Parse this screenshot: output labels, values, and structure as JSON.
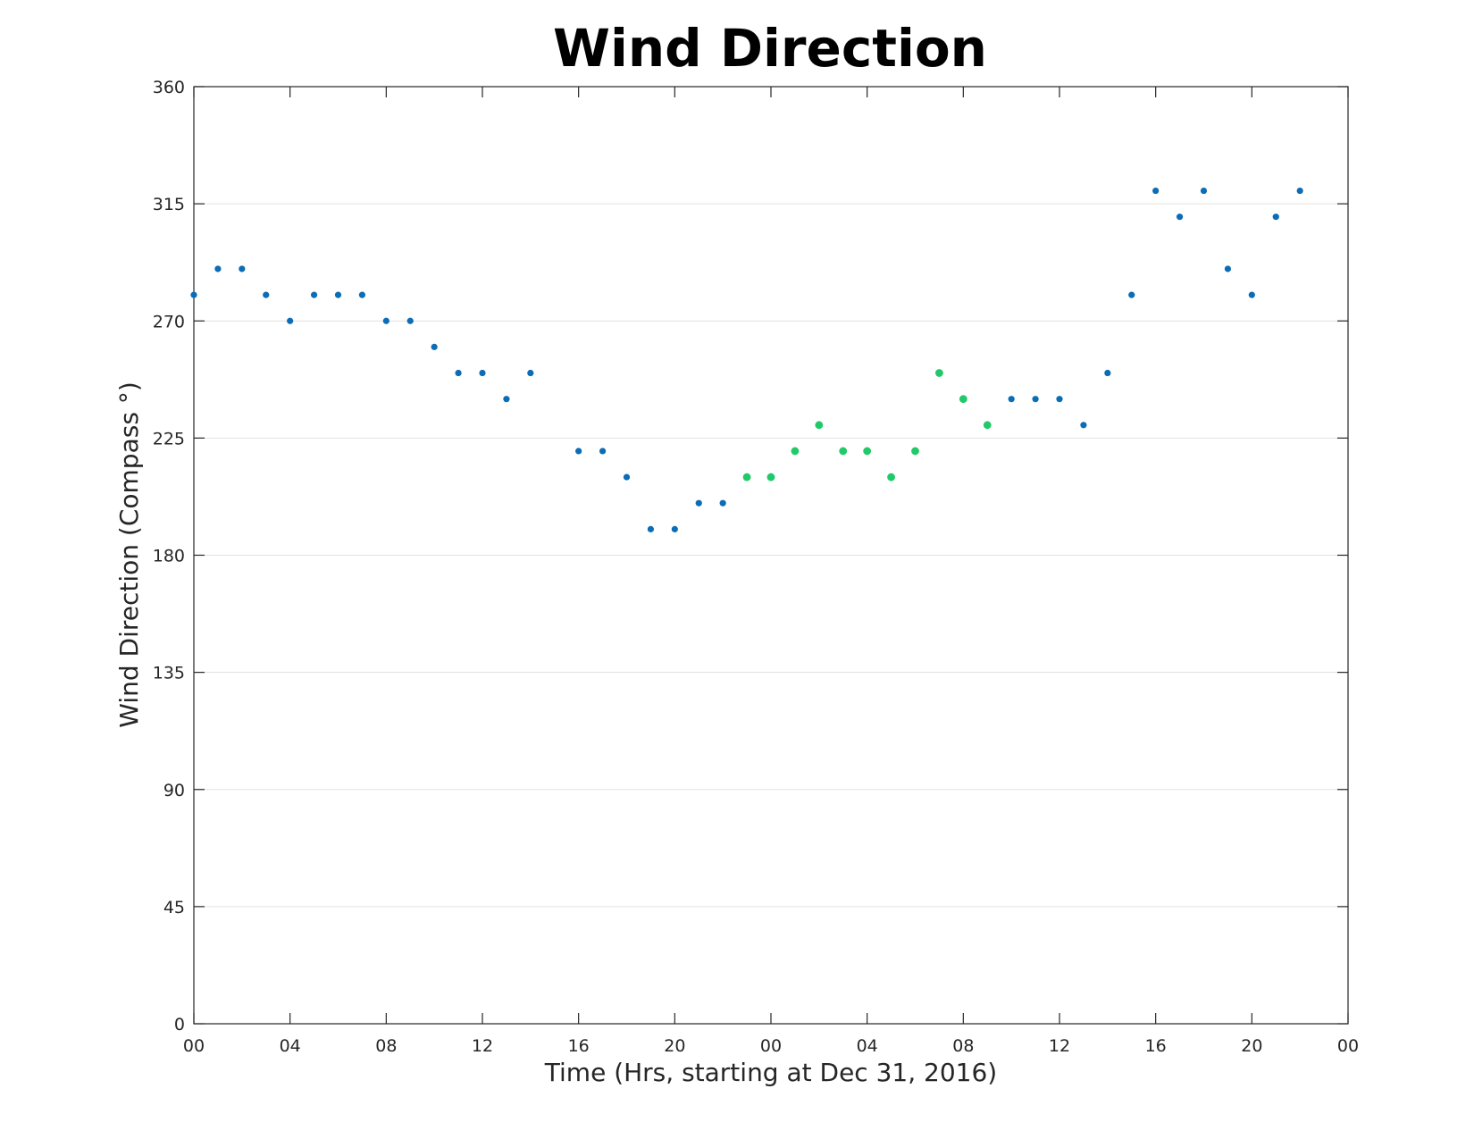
{
  "chart_data": {
    "type": "scatter",
    "title": "Wind Direction",
    "xlabel": "Time (Hrs, starting at Dec 31, 2016)",
    "ylabel": "Wind Direction (Compass °)",
    "ylim": [
      0,
      360
    ],
    "xlim": [
      "2016-12-31 00:00",
      "2017-01-02 00:00"
    ],
    "yticks": [
      0,
      45,
      90,
      135,
      180,
      225,
      270,
      315,
      360
    ],
    "xtick_labels": [
      "00",
      "04",
      "08",
      "12",
      "16",
      "20",
      "00",
      "04",
      "08",
      "12",
      "16",
      "20",
      "00"
    ],
    "xtick_times": [
      "2016-12-31 00:00",
      "2016-12-31 04:00",
      "2016-12-31 08:00",
      "2016-12-31 12:00",
      "2016-12-31 16:00",
      "2016-12-31 20:00",
      "2017-01-01 00:00",
      "2017-01-01 04:00",
      "2017-01-01 08:00",
      "2017-01-01 12:00",
      "2017-01-01 16:00",
      "2017-01-01 20:00",
      "2017-01-02 00:00"
    ],
    "grid": "horizontal",
    "series": [
      {
        "color": "#0b6db5",
        "points": [
          {
            "x": "2016-12-31 00:00",
            "y": 280
          },
          {
            "x": "2016-12-31 01:00",
            "y": 290
          },
          {
            "x": "2016-12-31 02:00",
            "y": 290
          },
          {
            "x": "2016-12-31 03:00",
            "y": 280
          },
          {
            "x": "2016-12-31 04:00",
            "y": 270
          },
          {
            "x": "2016-12-31 05:00",
            "y": 280
          },
          {
            "x": "2016-12-31 06:00",
            "y": 280
          },
          {
            "x": "2016-12-31 07:00",
            "y": 280
          },
          {
            "x": "2016-12-31 08:00",
            "y": 270
          },
          {
            "x": "2016-12-31 09:00",
            "y": 270
          },
          {
            "x": "2016-12-31 10:00",
            "y": 260
          },
          {
            "x": "2016-12-31 11:00",
            "y": 250
          },
          {
            "x": "2016-12-31 12:00",
            "y": 250
          },
          {
            "x": "2016-12-31 13:00",
            "y": 240
          },
          {
            "x": "2016-12-31 14:00",
            "y": 250
          },
          {
            "x": "2016-12-31 16:00",
            "y": 220
          },
          {
            "x": "2016-12-31 17:00",
            "y": 220
          },
          {
            "x": "2016-12-31 18:00",
            "y": 210
          },
          {
            "x": "2016-12-31 19:00",
            "y": 190
          },
          {
            "x": "2016-12-31 20:00",
            "y": 190
          },
          {
            "x": "2016-12-31 21:00",
            "y": 200
          },
          {
            "x": "2016-12-31 22:00",
            "y": 200
          },
          {
            "x": "2017-01-01 10:00",
            "y": 240
          },
          {
            "x": "2017-01-01 11:00",
            "y": 240
          },
          {
            "x": "2017-01-01 12:00",
            "y": 240
          },
          {
            "x": "2017-01-01 13:00",
            "y": 230
          },
          {
            "x": "2017-01-01 14:00",
            "y": 250
          },
          {
            "x": "2017-01-01 15:00",
            "y": 280
          },
          {
            "x": "2017-01-01 16:00",
            "y": 320
          },
          {
            "x": "2017-01-01 17:00",
            "y": 310
          },
          {
            "x": "2017-01-01 18:00",
            "y": 320
          },
          {
            "x": "2017-01-01 19:00",
            "y": 290
          },
          {
            "x": "2017-01-01 20:00",
            "y": 280
          },
          {
            "x": "2017-01-01 21:00",
            "y": 310
          },
          {
            "x": "2017-01-01 22:00",
            "y": 320
          }
        ]
      },
      {
        "color": "#22c96a",
        "points": [
          {
            "x": "2016-12-31 23:00",
            "y": 210
          },
          {
            "x": "2017-01-01 00:00",
            "y": 210
          },
          {
            "x": "2017-01-01 01:00",
            "y": 220
          },
          {
            "x": "2017-01-01 02:00",
            "y": 230
          },
          {
            "x": "2017-01-01 03:00",
            "y": 220
          },
          {
            "x": "2017-01-01 04:00",
            "y": 220
          },
          {
            "x": "2017-01-01 05:00",
            "y": 210
          },
          {
            "x": "2017-01-01 06:00",
            "y": 220
          },
          {
            "x": "2017-01-01 07:00",
            "y": 250
          },
          {
            "x": "2017-01-01 08:00",
            "y": 240
          },
          {
            "x": "2017-01-01 09:00",
            "y": 230
          }
        ]
      }
    ]
  }
}
